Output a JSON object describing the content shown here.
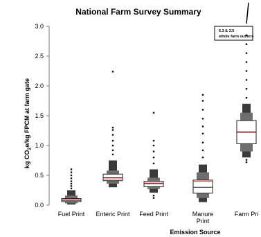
{
  "chart_data": {
    "type": "letter-value-boxplot",
    "title": "National Farm Survey Summary",
    "xlabel": "Emission Source",
    "ylabel_parts": [
      "kg CO",
      "2",
      "e/kg FPCM at farm gate"
    ],
    "ylim": [
      0.0,
      3.0
    ],
    "yticks": [
      "0.0",
      "0.5",
      "1.0",
      "1.5",
      "2.0",
      "2.5",
      "3.0"
    ],
    "annotation": [
      "5.3 & 3.5",
      "whole farm outliers"
    ],
    "categories": [
      {
        "label": [
          "Fuel Print"
        ],
        "median": 0.08,
        "mean": 0.09,
        "q1": 0.06,
        "q3": 0.11,
        "inner": [
          0.03,
          0.16
        ],
        "outer": [
          0.01,
          0.25
        ],
        "outliers": [
          0.28,
          0.32,
          0.36,
          0.4,
          0.45,
          0.5,
          0.55,
          0.6
        ]
      },
      {
        "label": [
          "Enteric Print"
        ],
        "median": 0.46,
        "mean": 0.44,
        "q1": 0.41,
        "q3": 0.52,
        "inner": [
          0.36,
          0.58
        ],
        "outer": [
          0.3,
          0.75
        ],
        "outliers": [
          0.85,
          0.92,
          1.0,
          1.08,
          1.18,
          1.26,
          1.3,
          2.24
        ]
      },
      {
        "label": [
          "Feed Print"
        ],
        "median": 0.36,
        "mean": 0.37,
        "q1": 0.31,
        "q3": 0.4,
        "inner": [
          0.27,
          0.46
        ],
        "outer": [
          0.21,
          0.6
        ],
        "outliers": [
          0.12,
          0.16,
          0.7,
          0.8,
          0.9,
          1.0,
          1.08,
          1.55
        ]
      },
      {
        "label": [
          "Manure",
          "Print"
        ],
        "median": 0.3,
        "mean": 0.4,
        "q1": 0.2,
        "q3": 0.42,
        "inner": [
          0.12,
          0.55
        ],
        "outer": [
          0.05,
          0.68
        ],
        "outliers": [
          0.8,
          0.92,
          1.05,
          1.2,
          1.32,
          1.45,
          1.6,
          1.75,
          1.85
        ]
      },
      {
        "label": [
          "Farm Pri"
        ],
        "median": 1.23,
        "mean": 1.22,
        "q1": 1.03,
        "q3": 1.42,
        "inner": [
          0.9,
          1.55
        ],
        "outer": [
          0.8,
          1.7
        ],
        "outliers": [
          0.72,
          0.76,
          1.8,
          1.95,
          2.1,
          2.25,
          2.4,
          2.55,
          2.7,
          2.85
        ]
      }
    ]
  }
}
